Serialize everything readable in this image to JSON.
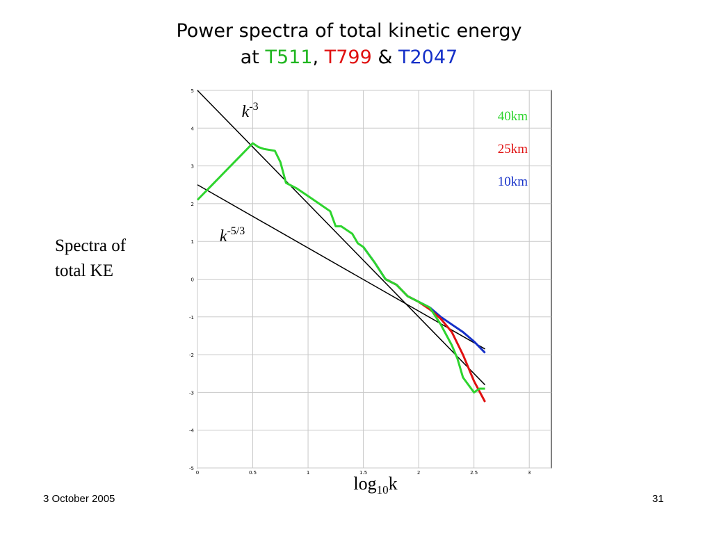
{
  "slide": {
    "title_line1": "Power spectra of total kinetic energy",
    "title_at": "at",
    "title_t511": "T511",
    "title_comma": ",",
    "title_t799": "T799",
    "title_amp": "&",
    "title_t2047": "T2047",
    "side_label_line1": "Spectra of",
    "side_label_line2": "total KE",
    "footer_date": "3 October 2005",
    "footer_page": "31"
  },
  "chart_data": {
    "type": "line",
    "xlabel": "log10k",
    "xlabel_parts": {
      "main": "log",
      "sub": "10",
      "tail": "k"
    },
    "ylabel": "",
    "xlim": [
      0,
      3.2
    ],
    "ylim": [
      -5,
      5
    ],
    "x_ticks": [
      0,
      0.5,
      1,
      1.5,
      2,
      2.5,
      3
    ],
    "x_tick_labels": [
      "0",
      "0.5",
      "1",
      "1.5",
      "2",
      "2.5",
      "3"
    ],
    "y_ticks": [
      5,
      4,
      3,
      2,
      1,
      0,
      -1,
      -2,
      -3,
      -4,
      -5
    ],
    "y_tick_labels": [
      "5",
      "4",
      "3",
      "2",
      "1",
      "0",
      "-1",
      "-2",
      "-3",
      "-4",
      "-5"
    ],
    "grid": true,
    "legend_position": "top-right",
    "annotations": [
      {
        "base": "k",
        "sup": "-3",
        "x": 0.4,
        "y": 4.3
      },
      {
        "base": "k",
        "sup": "-5/3",
        "x": 0.2,
        "y": 1.0
      }
    ],
    "reference_lines": [
      {
        "name": "k^-3",
        "x": [
          0,
          2.6
        ],
        "y": [
          5.0,
          -2.8
        ],
        "color": "#000000"
      },
      {
        "name": "k^-5/3",
        "x": [
          0,
          2.6
        ],
        "y": [
          2.5,
          -1.85
        ],
        "color": "#000000"
      }
    ],
    "series": [
      {
        "name": "10km",
        "color": "#1530c8",
        "x": [
          1.5,
          1.6,
          1.7,
          1.8,
          1.9,
          2.0,
          2.1,
          2.2,
          2.3,
          2.4,
          2.5,
          2.6
        ],
        "y": [
          0.85,
          0.45,
          0.0,
          -0.15,
          -0.45,
          -0.6,
          -0.75,
          -1.0,
          -1.2,
          -1.4,
          -1.65,
          -1.95
        ]
      },
      {
        "name": "25km",
        "color": "#e01010",
        "x": [
          1.7,
          1.8,
          1.9,
          2.0,
          2.1,
          2.2,
          2.3,
          2.4,
          2.5,
          2.6
        ],
        "y": [
          0.0,
          -0.15,
          -0.45,
          -0.6,
          -0.8,
          -1.05,
          -1.4,
          -2.0,
          -2.7,
          -3.25
        ]
      },
      {
        "name": "40km",
        "color": "#2ed42e",
        "x": [
          0.0,
          0.1,
          0.2,
          0.3,
          0.4,
          0.5,
          0.55,
          0.6,
          0.7,
          0.75,
          0.8,
          0.9,
          1.0,
          1.1,
          1.2,
          1.25,
          1.3,
          1.4,
          1.45,
          1.5,
          1.6,
          1.7,
          1.8,
          1.9,
          2.0,
          2.1,
          2.2,
          2.3,
          2.35,
          2.4,
          2.45,
          2.5,
          2.55,
          2.6
        ],
        "y": [
          2.1,
          2.4,
          2.7,
          3.0,
          3.3,
          3.6,
          3.5,
          3.45,
          3.4,
          3.1,
          2.55,
          2.4,
          2.2,
          2.0,
          1.8,
          1.4,
          1.4,
          1.2,
          0.95,
          0.85,
          0.45,
          0.0,
          -0.15,
          -0.45,
          -0.6,
          -0.75,
          -1.2,
          -1.75,
          -2.1,
          -2.6,
          -2.8,
          -3.0,
          -2.9,
          -2.9
        ]
      }
    ]
  }
}
